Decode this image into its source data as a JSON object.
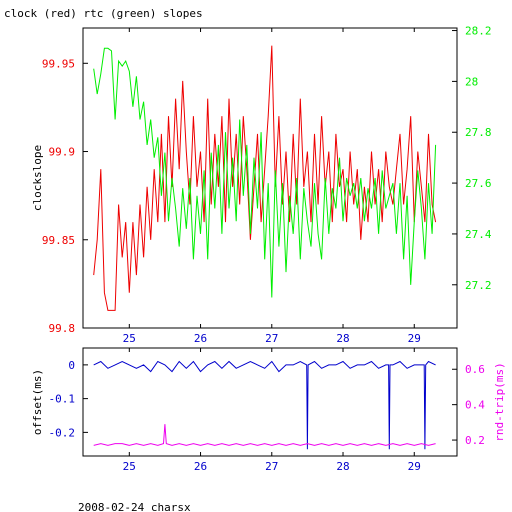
{
  "title": "clock (red) rtc (green) slopes",
  "footer": "2008-02-24 charsx",
  "colors": {
    "red": "#ee0000",
    "green": "#00ee00",
    "blue": "#0000cc",
    "magenta": "#ee00ee",
    "axis": "#000000"
  },
  "chart_data": [
    {
      "type": "line",
      "ylabel": "clockslope",
      "x_ticks": [
        25,
        26,
        27,
        28,
        29
      ],
      "xlim": [
        24.35,
        29.6
      ],
      "y_left_ticks": [
        "99.8",
        "99.85",
        "99.9",
        "99.95"
      ],
      "y_left_lim": [
        99.8,
        99.97
      ],
      "y_right_ticks": [
        "27.2",
        "27.4",
        "27.6",
        "27.8",
        "28",
        "28.2"
      ],
      "y_right_lim": [
        27.03,
        28.21
      ],
      "series": [
        {
          "name": "clock",
          "axis": "left",
          "color": "red",
          "x": [
            24.5,
            24.55,
            24.6,
            24.65,
            24.7,
            24.75,
            24.8,
            24.85,
            24.9,
            24.95,
            25.0,
            25.05,
            25.1,
            25.15,
            25.2,
            25.25,
            25.3,
            25.35,
            25.4,
            25.45,
            25.5,
            25.55,
            25.6,
            25.65,
            25.7,
            25.75,
            25.8,
            25.85,
            25.9,
            25.95,
            26.0,
            26.05,
            26.1,
            26.15,
            26.2,
            26.25,
            26.3,
            26.35,
            26.4,
            26.45,
            26.5,
            26.55,
            26.6,
            26.65,
            26.7,
            26.75,
            26.8,
            26.85,
            26.9,
            26.95,
            27.0,
            27.05,
            27.1,
            27.15,
            27.2,
            27.25,
            27.3,
            27.35,
            27.4,
            27.45,
            27.5,
            27.55,
            27.6,
            27.65,
            27.7,
            27.75,
            27.8,
            27.85,
            27.9,
            27.95,
            28.0,
            28.05,
            28.1,
            28.15,
            28.2,
            28.25,
            28.3,
            28.35,
            28.4,
            28.45,
            28.5,
            28.55,
            28.6,
            28.65,
            28.7,
            28.75,
            28.8,
            28.85,
            28.9,
            28.95,
            29.0,
            29.05,
            29.1,
            29.15,
            29.2,
            29.25,
            29.3
          ],
          "values": [
            99.83,
            99.85,
            99.89,
            99.82,
            99.81,
            99.81,
            99.81,
            99.87,
            99.84,
            99.86,
            99.82,
            99.86,
            99.83,
            99.87,
            99.84,
            99.88,
            99.85,
            99.89,
            99.86,
            99.91,
            99.86,
            99.92,
            99.88,
            99.93,
            99.89,
            99.94,
            99.9,
            99.87,
            99.92,
            99.88,
            99.9,
            99.86,
            99.93,
            99.87,
            99.91,
            99.88,
            99.92,
            99.86,
            99.93,
            99.88,
            99.91,
            99.87,
            99.92,
            99.89,
            99.85,
            99.88,
            99.91,
            99.86,
            99.89,
            99.92,
            99.96,
            99.88,
            99.92,
            99.87,
            99.9,
            99.86,
            99.91,
            99.87,
            99.93,
            99.88,
            99.9,
            99.86,
            99.91,
            99.87,
            99.92,
            99.88,
            99.9,
            99.86,
            99.91,
            99.88,
            99.89,
            99.86,
            99.9,
            99.87,
            99.89,
            99.85,
            99.88,
            99.86,
            99.9,
            99.87,
            99.89,
            99.86,
            99.9,
            99.88,
            99.87,
            99.89,
            99.91,
            99.87,
            99.89,
            99.92,
            99.86,
            99.9,
            99.88,
            99.86,
            99.91,
            99.87,
            99.86
          ]
        },
        {
          "name": "rtc",
          "axis": "right",
          "color": "green",
          "x": [
            24.5,
            24.55,
            24.6,
            24.65,
            24.7,
            24.75,
            24.8,
            24.85,
            24.9,
            24.95,
            25.0,
            25.05,
            25.1,
            25.15,
            25.2,
            25.25,
            25.3,
            25.35,
            25.4,
            25.45,
            25.5,
            25.55,
            25.6,
            25.65,
            25.7,
            25.75,
            25.8,
            25.85,
            25.9,
            25.95,
            26.0,
            26.05,
            26.1,
            26.15,
            26.2,
            26.25,
            26.3,
            26.35,
            26.4,
            26.45,
            26.5,
            26.55,
            26.6,
            26.65,
            26.7,
            26.75,
            26.8,
            26.85,
            26.9,
            26.95,
            27.0,
            27.05,
            27.1,
            27.15,
            27.2,
            27.25,
            27.3,
            27.35,
            27.4,
            27.45,
            27.5,
            27.55,
            27.6,
            27.65,
            27.7,
            27.75,
            27.8,
            27.85,
            27.9,
            27.95,
            28.0,
            28.05,
            28.1,
            28.15,
            28.2,
            28.25,
            28.3,
            28.35,
            28.4,
            28.45,
            28.5,
            28.55,
            28.6,
            28.65,
            28.7,
            28.75,
            28.8,
            28.85,
            28.9,
            28.95,
            29.0,
            29.05,
            29.1,
            29.15,
            29.2,
            29.25,
            29.3
          ],
          "values": [
            28.05,
            27.95,
            28.03,
            28.13,
            28.13,
            28.12,
            27.85,
            28.08,
            28.06,
            28.08,
            28.04,
            27.9,
            28.02,
            27.85,
            27.92,
            27.75,
            27.85,
            27.7,
            27.78,
            27.55,
            27.72,
            27.45,
            27.62,
            27.5,
            27.35,
            27.58,
            27.42,
            27.62,
            27.3,
            27.55,
            27.4,
            27.65,
            27.3,
            27.72,
            27.5,
            27.75,
            27.4,
            27.8,
            27.5,
            27.7,
            27.45,
            27.85,
            27.55,
            27.75,
            27.4,
            27.7,
            27.5,
            27.8,
            27.3,
            27.6,
            27.15,
            27.65,
            27.35,
            27.6,
            27.25,
            27.55,
            27.4,
            27.62,
            27.3,
            27.58,
            27.45,
            27.35,
            27.6,
            27.4,
            27.3,
            27.62,
            27.4,
            27.58,
            27.5,
            27.7,
            27.45,
            27.62,
            27.55,
            27.6,
            27.5,
            27.62,
            27.45,
            27.58,
            27.5,
            27.62,
            27.4,
            27.65,
            27.5,
            27.55,
            27.6,
            27.4,
            27.6,
            27.3,
            27.55,
            27.2,
            27.45,
            27.65,
            27.5,
            27.3,
            27.6,
            27.4,
            27.75
          ]
        }
      ]
    },
    {
      "type": "line",
      "ylabel": "offset(ms)",
      "y2label": "rnd-trip(ms)",
      "x_ticks": [
        25,
        26,
        27,
        28,
        29
      ],
      "xlim": [
        24.35,
        29.6
      ],
      "y_left_ticks": [
        "-0.2",
        "-0.1",
        "0"
      ],
      "y_left_lim": [
        -0.27,
        0.05
      ],
      "y_right_ticks": [
        "0.2",
        "0.4",
        "0.6"
      ],
      "y_right_lim": [
        0.11,
        0.72
      ],
      "series": [
        {
          "name": "offset",
          "axis": "left",
          "color": "blue",
          "x": [
            24.5,
            24.6,
            24.7,
            24.8,
            24.9,
            25.0,
            25.1,
            25.2,
            25.3,
            25.4,
            25.5,
            25.6,
            25.7,
            25.8,
            25.9,
            26.0,
            26.1,
            26.2,
            26.3,
            26.4,
            26.5,
            26.6,
            26.7,
            26.8,
            26.9,
            27.0,
            27.1,
            27.2,
            27.3,
            27.4,
            27.49,
            27.5,
            27.51,
            27.6,
            27.7,
            27.8,
            27.9,
            28.0,
            28.1,
            28.2,
            28.3,
            28.4,
            28.5,
            28.6,
            28.64,
            28.65,
            28.66,
            28.7,
            28.8,
            28.9,
            29.0,
            29.1,
            29.14,
            29.15,
            29.16,
            29.2,
            29.3
          ],
          "values": [
            0.0,
            0.01,
            -0.01,
            0.0,
            0.01,
            0.0,
            -0.01,
            0.0,
            -0.02,
            0.01,
            0.0,
            -0.02,
            0.01,
            -0.01,
            0.01,
            -0.02,
            0.0,
            0.01,
            -0.01,
            0.01,
            -0.01,
            0.0,
            0.01,
            0.0,
            -0.01,
            0.01,
            -0.02,
            0.0,
            0.0,
            0.01,
            0.0,
            -0.25,
            0.0,
            0.01,
            -0.01,
            0.0,
            0.0,
            0.01,
            -0.01,
            0.0,
            0.0,
            0.01,
            -0.01,
            0.0,
            0.0,
            -0.25,
            0.0,
            0.0,
            0.01,
            -0.01,
            0.0,
            0.0,
            0.0,
            -0.25,
            0.0,
            0.01,
            0.0
          ]
        },
        {
          "name": "rnd-trip",
          "axis": "right",
          "color": "magenta",
          "x": [
            24.5,
            24.6,
            24.7,
            24.8,
            24.9,
            25.0,
            25.1,
            25.2,
            25.3,
            25.4,
            25.48,
            25.5,
            25.52,
            25.6,
            25.7,
            25.8,
            25.9,
            26.0,
            26.1,
            26.2,
            26.3,
            26.4,
            26.5,
            26.6,
            26.7,
            26.8,
            26.9,
            27.0,
            27.1,
            27.2,
            27.3,
            27.4,
            27.5,
            27.6,
            27.7,
            27.8,
            27.9,
            28.0,
            28.1,
            28.2,
            28.3,
            28.4,
            28.5,
            28.6,
            28.7,
            28.8,
            28.9,
            29.0,
            29.1,
            29.2,
            29.3
          ],
          "values": [
            0.17,
            0.18,
            0.17,
            0.18,
            0.18,
            0.17,
            0.18,
            0.17,
            0.18,
            0.17,
            0.18,
            0.29,
            0.18,
            0.17,
            0.18,
            0.17,
            0.18,
            0.17,
            0.18,
            0.17,
            0.18,
            0.17,
            0.18,
            0.17,
            0.18,
            0.17,
            0.18,
            0.17,
            0.18,
            0.17,
            0.18,
            0.17,
            0.18,
            0.17,
            0.18,
            0.17,
            0.18,
            0.17,
            0.18,
            0.17,
            0.18,
            0.17,
            0.18,
            0.17,
            0.18,
            0.17,
            0.18,
            0.17,
            0.18,
            0.17,
            0.18
          ]
        }
      ]
    }
  ]
}
